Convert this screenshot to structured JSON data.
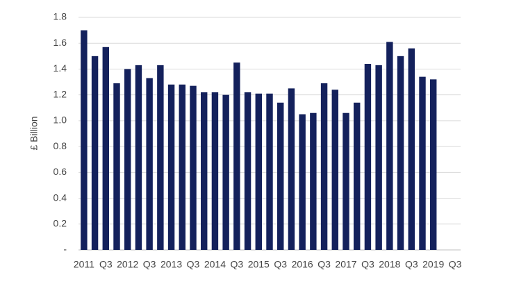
{
  "chart_data": {
    "type": "bar",
    "y_label": "£ Billion",
    "categories": [
      "2011",
      null,
      "Q3",
      null,
      "2012",
      null,
      "Q3",
      null,
      "2013",
      null,
      "Q3",
      null,
      "2014",
      null,
      "Q3",
      null,
      "2015",
      null,
      "Q3",
      null,
      "2016",
      null,
      "Q3",
      null,
      "2017",
      null,
      "Q3",
      null,
      "2018",
      null,
      "Q3",
      null,
      "2019",
      null,
      "Q3"
    ],
    "values": [
      1.7,
      1.5,
      1.57,
      1.29,
      1.4,
      1.43,
      1.33,
      1.43,
      1.28,
      1.28,
      1.27,
      1.22,
      1.22,
      1.2,
      1.45,
      1.22,
      1.21,
      1.21,
      1.14,
      1.25,
      1.05,
      1.06,
      1.29,
      1.24,
      1.06,
      1.14,
      1.44,
      1.43,
      1.61,
      1.5,
      1.56,
      1.34,
      1.32,
      null,
      null
    ],
    "color": "#14215c",
    "ylim": [
      0,
      1.8
    ],
    "yticks": [
      {
        "value": 0,
        "label": "-"
      },
      0.2,
      0.4,
      0.6,
      0.8,
      {
        "value": 1.0,
        "label": "1.0"
      },
      1.2,
      1.4,
      1.6,
      1.8
    ],
    "grid": true
  }
}
